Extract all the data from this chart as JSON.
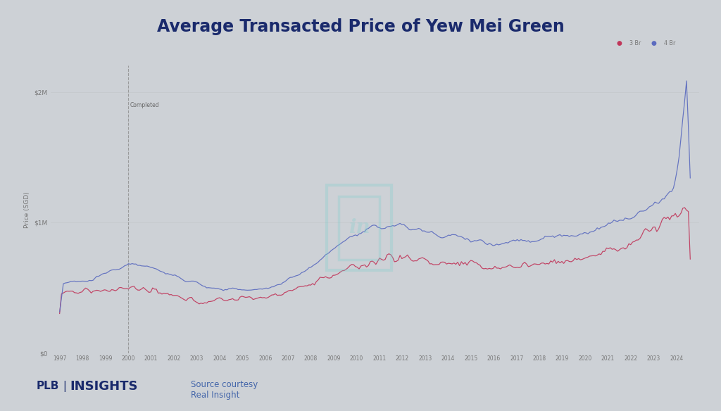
{
  "title": "Average Transacted Price of Yew Mei Green",
  "bg_color": "#cdd1d6",
  "plot_bg_color": "#cdd1d6",
  "line_3br_color": "#c0365a",
  "line_4br_color": "#5b6bbf",
  "ylabel": "Price (SGD)",
  "y_ticks": [
    0,
    1000000,
    2000000
  ],
  "y_tick_labels": [
    "$0",
    "$1M",
    "$2M"
  ],
  "completed_year": 2000,
  "completed_label": "Completed",
  "legend_3br": "3 Br",
  "legend_4br": "4 Br",
  "title_color": "#1a2a6c",
  "title_fontsize": 17,
  "source_text": "Source courtesy\nReal Insight",
  "footer_color": "#1a2a6c",
  "source_color": "#4466aa",
  "tick_color": "#777777",
  "axis_label_color": "#777777"
}
